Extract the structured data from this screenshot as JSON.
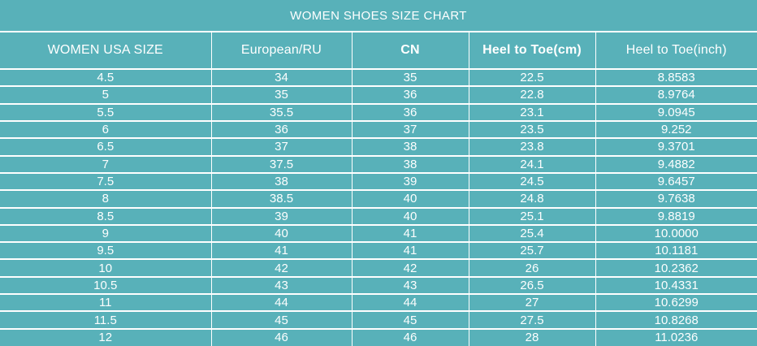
{
  "title": "WOMEN SHOES SIZE CHART",
  "colors": {
    "background": "#58b1b9",
    "grid_lines": "#ffffff",
    "text": "#ffffff"
  },
  "table": {
    "columns": [
      {
        "label": "WOMEN USA SIZE",
        "bold": false
      },
      {
        "label": "European/RU",
        "bold": false
      },
      {
        "label": "CN",
        "bold": true
      },
      {
        "label": "Heel to Toe(cm)",
        "bold": true
      },
      {
        "label": "Heel to Toe(inch)",
        "bold": false
      }
    ],
    "rows": [
      [
        "4.5",
        "34",
        "35",
        "22.5",
        "8.8583"
      ],
      [
        "5",
        "35",
        "36",
        "22.8",
        "8.9764"
      ],
      [
        "5.5",
        "35.5",
        "36",
        "23.1",
        "9.0945"
      ],
      [
        "6",
        "36",
        "37",
        "23.5",
        "9.252"
      ],
      [
        "6.5",
        "37",
        "38",
        "23.8",
        "9.3701"
      ],
      [
        "7",
        "37.5",
        "38",
        "24.1",
        "9.4882"
      ],
      [
        "7.5",
        "38",
        "39",
        "24.5",
        "9.6457"
      ],
      [
        "8",
        "38.5",
        "40",
        "24.8",
        "9.7638"
      ],
      [
        "8.5",
        "39",
        "40",
        "25.1",
        "9.8819"
      ],
      [
        "9",
        "40",
        "41",
        "25.4",
        "10.0000"
      ],
      [
        "9.5",
        "41",
        "41",
        "25.7",
        "10.1181"
      ],
      [
        "10",
        "42",
        "42",
        "26",
        "10.2362"
      ],
      [
        "10.5",
        "43",
        "43",
        "26.5",
        "10.4331"
      ],
      [
        "11",
        "44",
        "44",
        "27",
        "10.6299"
      ],
      [
        "11.5",
        "45",
        "45",
        "27.5",
        "10.8268"
      ],
      [
        "12",
        "46",
        "46",
        "28",
        "11.0236"
      ]
    ]
  },
  "chart_data": {
    "type": "table",
    "title": "WOMEN SHOES SIZE CHART",
    "columns": [
      "WOMEN USA SIZE",
      "European/RU",
      "CN",
      "Heel to Toe(cm)",
      "Heel to Toe(inch)"
    ],
    "rows": [
      [
        "4.5",
        "34",
        "35",
        "22.5",
        "8.8583"
      ],
      [
        "5",
        "35",
        "36",
        "22.8",
        "8.9764"
      ],
      [
        "5.5",
        "35.5",
        "36",
        "23.1",
        "9.0945"
      ],
      [
        "6",
        "36",
        "37",
        "23.5",
        "9.252"
      ],
      [
        "6.5",
        "37",
        "38",
        "23.8",
        "9.3701"
      ],
      [
        "7",
        "37.5",
        "38",
        "24.1",
        "9.4882"
      ],
      [
        "7.5",
        "38",
        "39",
        "24.5",
        "9.6457"
      ],
      [
        "8",
        "38.5",
        "40",
        "24.8",
        "9.7638"
      ],
      [
        "8.5",
        "39",
        "40",
        "25.1",
        "9.8819"
      ],
      [
        "9",
        "40",
        "41",
        "25.4",
        "10.0000"
      ],
      [
        "9.5",
        "41",
        "41",
        "25.7",
        "10.1181"
      ],
      [
        "10",
        "42",
        "42",
        "26",
        "10.2362"
      ],
      [
        "10.5",
        "43",
        "43",
        "26.5",
        "10.4331"
      ],
      [
        "11",
        "44",
        "44",
        "27",
        "10.6299"
      ],
      [
        "11.5",
        "45",
        "45",
        "27.5",
        "10.8268"
      ],
      [
        "12",
        "46",
        "46",
        "28",
        "11.0236"
      ]
    ]
  }
}
